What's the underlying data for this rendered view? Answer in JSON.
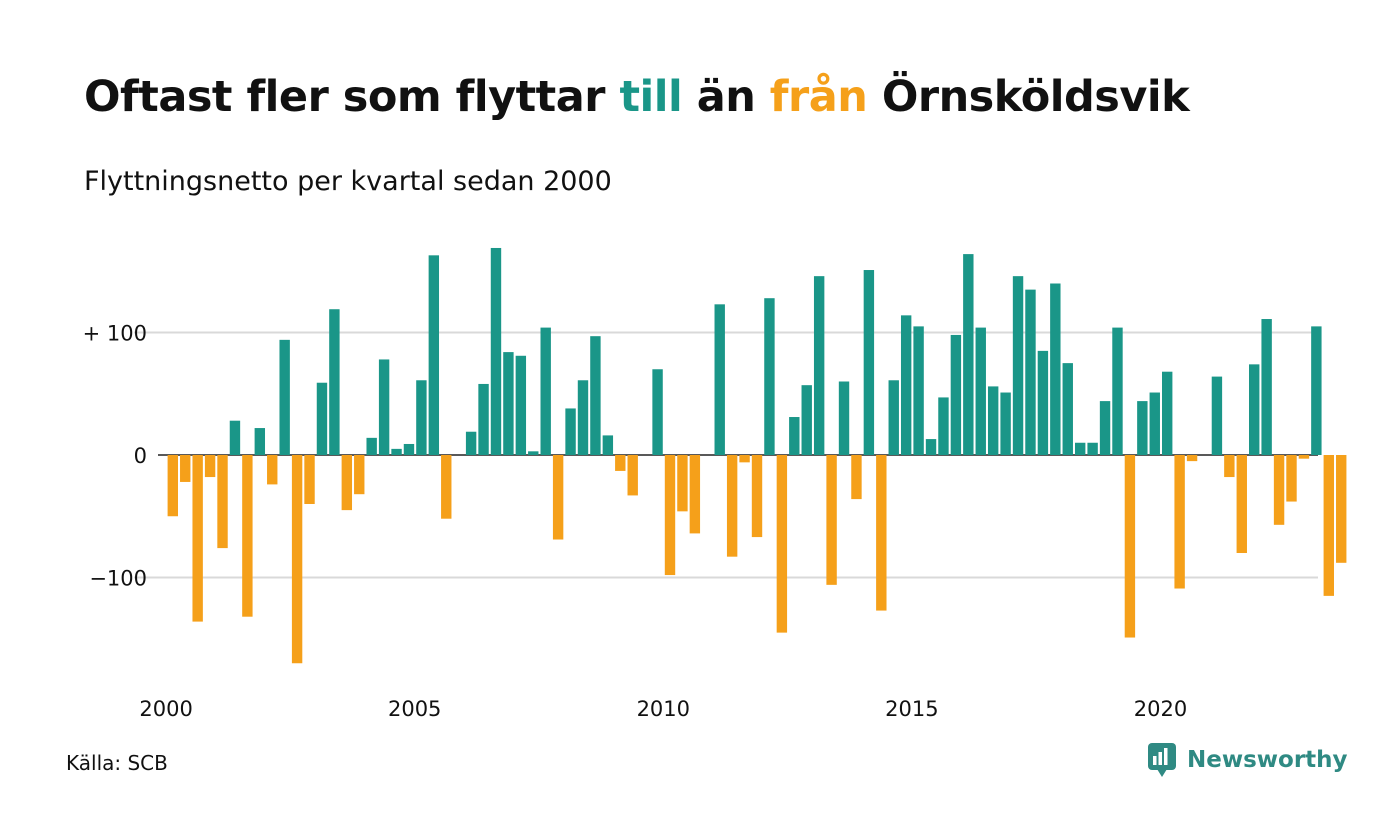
{
  "title": {
    "part1": "Oftast fler som flyttar ",
    "till": "till",
    "part2": " än ",
    "fran": "från",
    "part3": " Örnsköldsvik"
  },
  "subtitle": "Flyttningsnetto per kvartal sedan 2000",
  "source": "Källa: SCB",
  "brand": "Newsworthy",
  "colors": {
    "positive": "#1a9688",
    "negative": "#f5a01a",
    "till": "#1a9688",
    "fran": "#f5a01a",
    "grid": "#d9d9d9",
    "brand": "#2f8a83"
  },
  "icons": {
    "logo": "newsworthy-logo-icon"
  },
  "chart_data": {
    "type": "bar",
    "title": "Oftast fler som flyttar till än från Örnsköldsvik",
    "subtitle": "Flyttningsnetto per kvartal sedan 2000",
    "xlabel": "",
    "ylabel": "",
    "x_start": "2000 Q1",
    "frequency": "quarterly",
    "ylim": [
      -175,
      175
    ],
    "y_ticks": [
      {
        "value": 100,
        "label": "+ 100"
      },
      {
        "value": 0,
        "label": "0"
      },
      {
        "value": -100,
        "label": "−100"
      }
    ],
    "x_ticks": [
      {
        "index": 0,
        "label": "2000"
      },
      {
        "index": 20,
        "label": "2005"
      },
      {
        "index": 40,
        "label": "2010"
      },
      {
        "index": 60,
        "label": "2015"
      },
      {
        "index": 80,
        "label": "2020"
      }
    ],
    "grid": true,
    "legend": "none",
    "values": [
      -50,
      -22,
      -136,
      -18,
      -76,
      28,
      -132,
      22,
      -24,
      94,
      -170,
      -40,
      59,
      119,
      -45,
      -32,
      14,
      78,
      5,
      9,
      61,
      163,
      -52,
      0,
      19,
      58,
      169,
      84,
      81,
      3,
      104,
      -69,
      38,
      61,
      97,
      16,
      -13,
      -33,
      0,
      70,
      -98,
      -46,
      -64,
      0,
      123,
      -83,
      -6,
      -67,
      128,
      -145,
      31,
      57,
      146,
      -106,
      60,
      -36,
      151,
      -127,
      61,
      114,
      105,
      13,
      47,
      98,
      164,
      104,
      56,
      51,
      146,
      135,
      85,
      140,
      75,
      10,
      10,
      44,
      104,
      -149,
      44,
      51,
      68,
      -109,
      -5,
      0,
      64,
      -18,
      -80,
      74,
      111,
      -57,
      -38,
      -3,
      105,
      -115,
      -88
    ]
  }
}
